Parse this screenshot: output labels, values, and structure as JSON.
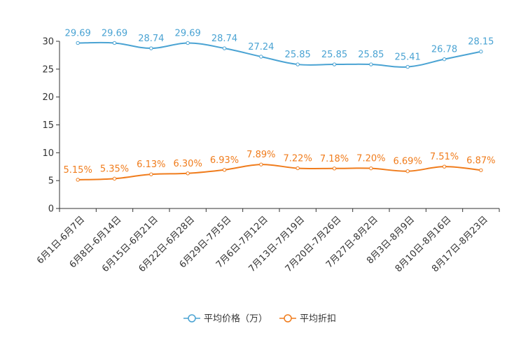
{
  "chart_data": {
    "type": "line",
    "title": "",
    "xlabel": "",
    "ylabel": "",
    "ylim": [
      0,
      30
    ],
    "yticks": [
      0,
      5,
      10,
      15,
      20,
      25,
      30
    ],
    "grid": false,
    "legend_position": "bottom-center",
    "categories": [
      "6月1日-6月7日",
      "6月8日-6月14日",
      "6月15日-6月21日",
      "6月22日-6月28日",
      "6月29日-7月5日",
      "7月6日-7月12日",
      "7月13日-7月19日",
      "7月20日-7月26日",
      "7月27日-8月2日",
      "8月3日-8月9日",
      "8月10日-8月16日",
      "8月17日-8月23日"
    ],
    "series": [
      {
        "name": "平均价格（万）",
        "color": "#4aa3d3",
        "values": [
          29.69,
          29.69,
          28.74,
          29.69,
          28.74,
          27.24,
          25.85,
          25.85,
          25.85,
          25.41,
          26.78,
          28.15
        ],
        "labels": [
          "29.69",
          "29.69",
          "28.74",
          "29.69",
          "28.74",
          "27.24",
          "25.85",
          "25.85",
          "25.85",
          "25.41",
          "26.78",
          "28.15"
        ]
      },
      {
        "name": "平均折扣",
        "color": "#f07c1c",
        "values": [
          5.15,
          5.35,
          6.13,
          6.3,
          6.93,
          7.89,
          7.22,
          7.18,
          7.2,
          6.69,
          7.51,
          6.87
        ],
        "labels": [
          "5.15%",
          "5.35%",
          "6.13%",
          "6.30%",
          "6.93%",
          "7.89%",
          "7.22%",
          "7.18%",
          "7.20%",
          "6.69%",
          "7.51%",
          "6.87%"
        ]
      }
    ]
  }
}
